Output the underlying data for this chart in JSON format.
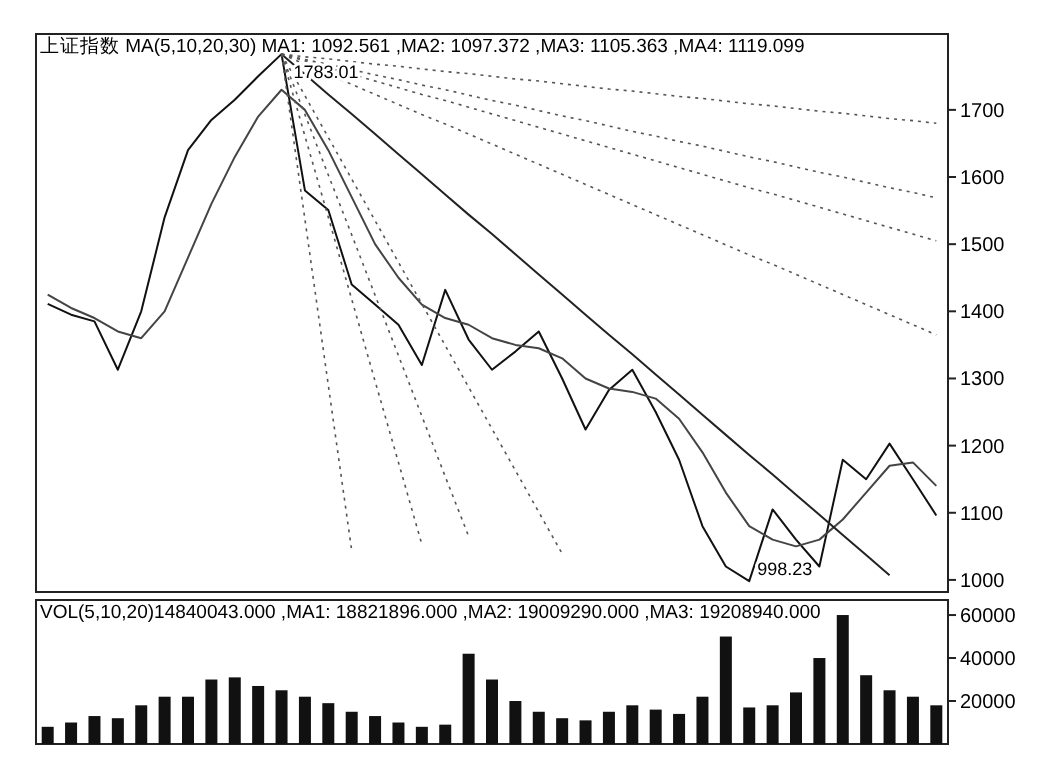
{
  "chart_data": [
    {
      "type": "line",
      "title": "上证指数 MA(5,10,20,30) MA1: 1092.561 ,MA2: 1097.372 ,MA3: 1105.363 ,MA4: 1119.099",
      "categories": [
        null,
        null,
        null,
        null,
        null,
        null,
        null,
        null,
        null,
        null,
        null,
        null,
        null,
        null,
        null,
        null,
        null,
        null,
        null,
        null,
        null,
        null,
        null,
        null,
        null,
        null,
        null,
        null,
        null,
        null,
        null,
        null,
        null,
        null,
        null,
        null,
        null,
        null,
        null
      ],
      "ylim": [
        982,
        1813
      ],
      "yticks": [
        1000,
        1100,
        1200,
        1300,
        1400,
        1500,
        1600,
        1700
      ],
      "tick_labels": "y",
      "grid": false,
      "series": [
        {
          "color": "#111111",
          "line_style": "solid",
          "values": [
            1411,
            1395,
            1385,
            1313,
            1400,
            1540,
            1640,
            1685,
            1715,
            1750,
            1783.01,
            1580,
            1551,
            1440,
            1410,
            1380,
            1320,
            1432,
            1358,
            1313,
            1340,
            1370,
            1300,
            1224,
            1283,
            1313,
            1250,
            1179,
            1080,
            1020,
            998.23,
            1105,
            1060,
            1020,
            1179,
            1150,
            1203,
            1150,
            1096
          ]
        },
        {
          "color": "#444444",
          "line_style": "solid",
          "values": [
            1425,
            1405,
            1390,
            1370,
            1360,
            1400,
            1480,
            1560,
            1630,
            1690,
            1730,
            1700,
            1640,
            1570,
            1500,
            1450,
            1410,
            1390,
            1380,
            1360,
            1350,
            1345,
            1330,
            1300,
            1285,
            1280,
            1270,
            1240,
            1190,
            1130,
            1080,
            1060,
            1050,
            1060,
            1090,
            1130,
            1170,
            1175,
            1140
          ]
        },
        {
          "color": "#222222",
          "line_style": "solid",
          "values": [
            null,
            null,
            null,
            null,
            null,
            null,
            null,
            null,
            null,
            null,
            1783.01,
            1753,
            1723,
            1694,
            1664,
            1634,
            1604,
            1574,
            1544,
            1515,
            1485,
            1455,
            1425,
            1395,
            1365,
            1336,
            1306,
            1276,
            1246,
            1216,
            1186,
            1157,
            1127,
            1097,
            1067,
            1037,
            1007,
            null,
            null
          ]
        },
        {
          "color": "#555555",
          "line_style": "dotted",
          "values": [
            null,
            null,
            null,
            null,
            null,
            null,
            null,
            null,
            null,
            null,
            1783.01,
            1779,
            1776,
            1772,
            1768,
            1765,
            1761,
            1757,
            1754,
            1750,
            1746,
            1743,
            1739,
            1735,
            1731,
            1728,
            1724,
            1720,
            1717,
            1713,
            1709,
            1706,
            1702,
            1698,
            1695,
            1691,
            1687,
            1684,
            1680
          ]
        },
        {
          "color": "#555555",
          "line_style": "dotted",
          "values": [
            null,
            null,
            null,
            null,
            null,
            null,
            null,
            null,
            null,
            null,
            1783.01,
            1775,
            1768,
            1760,
            1752,
            1745,
            1737,
            1730,
            1722,
            1714,
            1707,
            1699,
            1691,
            1684,
            1676,
            1668,
            1661,
            1653,
            1646,
            1638,
            1630,
            1623,
            1615,
            1607,
            1600,
            1592,
            1584,
            1577,
            1569
          ]
        },
        {
          "color": "#555555",
          "line_style": "dotted",
          "values": [
            null,
            null,
            null,
            null,
            null,
            null,
            null,
            null,
            null,
            null,
            1783.01,
            1773,
            1763,
            1753,
            1743,
            1733,
            1723,
            1714,
            1704,
            1694,
            1684,
            1674,
            1664,
            1654,
            1644,
            1634,
            1624,
            1614,
            1604,
            1594,
            1584,
            1575,
            1565,
            1555,
            1545,
            1535,
            1525,
            1515,
            1505
          ]
        },
        {
          "color": "#555555",
          "line_style": "dotted",
          "values": [
            null,
            null,
            null,
            null,
            null,
            null,
            null,
            null,
            null,
            null,
            1783.01,
            1768,
            1753,
            1738,
            1723,
            1708,
            1693,
            1679,
            1664,
            1649,
            1634,
            1619,
            1604,
            1589,
            1574,
            1559,
            1544,
            1529,
            1514,
            1499,
            1484,
            1470,
            1455,
            1440,
            1425,
            1410,
            1395,
            1380,
            1365
          ]
        },
        {
          "color": "#555555",
          "line_style": "dotted",
          "values": [
            null,
            null,
            null,
            null,
            null,
            null,
            null,
            null,
            null,
            null,
            1783.01,
            1537,
            1290,
            1044,
            null,
            null,
            null,
            null,
            null,
            null,
            null,
            null,
            null,
            null,
            null,
            null,
            null,
            null,
            null,
            null,
            null,
            null,
            null,
            null,
            null,
            null,
            null,
            null,
            null
          ]
        },
        {
          "color": "#555555",
          "line_style": "dotted",
          "values": [
            null,
            null,
            null,
            null,
            null,
            null,
            null,
            null,
            null,
            null,
            1783.01,
            1661,
            1540,
            1418,
            1296,
            1175,
            1053,
            null,
            null,
            null,
            null,
            null,
            null,
            null,
            null,
            null,
            null,
            null,
            null,
            null,
            null,
            null,
            null,
            null,
            null,
            null,
            null,
            null,
            null
          ]
        },
        {
          "color": "#555555",
          "line_style": "dotted",
          "values": [
            null,
            null,
            null,
            null,
            null,
            null,
            null,
            null,
            null,
            null,
            1783.01,
            1693,
            1603,
            1514,
            1424,
            1334,
            1244,
            1154,
            1065,
            null,
            null,
            null,
            null,
            null,
            null,
            null,
            null,
            null,
            null,
            null,
            null,
            null,
            null,
            null,
            null,
            null,
            null,
            null,
            null
          ]
        },
        {
          "color": "#555555",
          "line_style": "dotted",
          "values": [
            null,
            null,
            null,
            null,
            null,
            null,
            null,
            null,
            null,
            null,
            1783.01,
            1721,
            1659,
            1597,
            1535,
            1473,
            1411,
            1349,
            1287,
            1225,
            1163,
            1101,
            1039,
            null,
            null,
            null,
            null,
            null,
            null,
            null,
            null,
            null,
            null,
            null,
            null,
            null,
            null,
            null,
            null
          ]
        }
      ],
      "annotations": [
        "1783.01",
        "998.23"
      ]
    },
    {
      "type": "bar",
      "title": "VOL(5,10,20)14840043.000 ,MA1: 18821896.000 ,MA2: 19009290.000 ,MA3: 19208940.000",
      "categories": [
        null,
        null,
        null,
        null,
        null,
        null,
        null,
        null,
        null,
        null,
        null,
        null,
        null,
        null,
        null,
        null,
        null,
        null,
        null,
        null,
        null,
        null,
        null,
        null,
        null,
        null,
        null,
        null,
        null,
        null,
        null,
        null,
        null,
        null,
        null,
        null,
        null,
        null,
        null
      ],
      "ylim": [
        0,
        67000
      ],
      "yticks": [
        20000,
        40000,
        60000
      ],
      "tick_labels": "y",
      "grid": false,
      "color": "#111111",
      "values": [
        8000,
        10000,
        13000,
        12000,
        18000,
        22000,
        22000,
        30000,
        31000,
        27000,
        25000,
        22000,
        19000,
        15000,
        13000,
        10000,
        8000,
        9000,
        42000,
        30000,
        20000,
        15000,
        12000,
        11000,
        15000,
        18000,
        16000,
        14000,
        22000,
        50000,
        17000,
        18000,
        24000,
        40000,
        60000,
        32000,
        25000,
        22000,
        18000
      ]
    }
  ]
}
